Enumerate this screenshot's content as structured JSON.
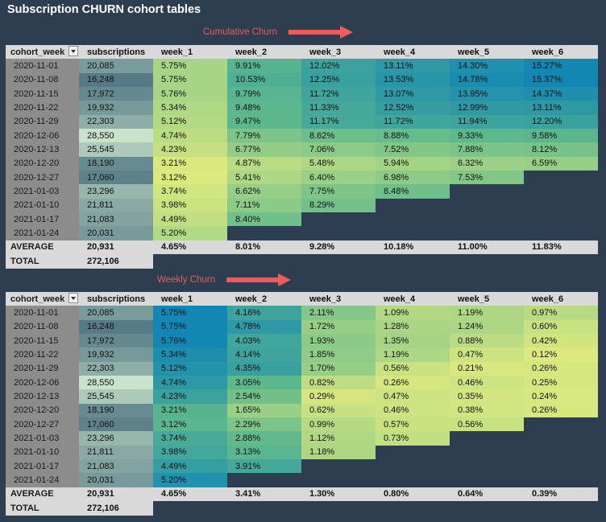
{
  "page": {
    "title": "Subscription CHURN cohort tables"
  },
  "colors": {
    "background": "#2d3e50",
    "header": "#d9d9d9",
    "cohort_column": "#8c8c8c",
    "annotation": "#f05a5a",
    "scale_low": "#dde97f",
    "scale_mid": "#5fb98c",
    "scale_high": "#1287b4",
    "subs_low": "#c8e3c9",
    "subs_high": "#567a86"
  },
  "header": {
    "cohort_week": "cohort_week",
    "subscriptions": "subscriptions",
    "weeks": [
      "week_1",
      "week_2",
      "week_3",
      "week_4",
      "week_5",
      "week_6"
    ]
  },
  "cohorts": [
    {
      "week": "2020-11-01",
      "subs": "20,085",
      "subs_n": 20085
    },
    {
      "week": "2020-11-08",
      "subs": "16,248",
      "subs_n": 16248
    },
    {
      "week": "2020-11-15",
      "subs": "17,972",
      "subs_n": 17972
    },
    {
      "week": "2020-11-22",
      "subs": "19,932",
      "subs_n": 19932
    },
    {
      "week": "2020-11-29",
      "subs": "22,303",
      "subs_n": 22303
    },
    {
      "week": "2020-12-06",
      "subs": "28,550",
      "subs_n": 28550
    },
    {
      "week": "2020-12-13",
      "subs": "25,545",
      "subs_n": 25545
    },
    {
      "week": "2020-12-20",
      "subs": "18,190",
      "subs_n": 18190
    },
    {
      "week": "2020-12-27",
      "subs": "17,060",
      "subs_n": 17060
    },
    {
      "week": "2021-01-03",
      "subs": "23,296",
      "subs_n": 23296
    },
    {
      "week": "2021-01-10",
      "subs": "21,811",
      "subs_n": 21811
    },
    {
      "week": "2021-01-17",
      "subs": "21,083",
      "subs_n": 21083
    },
    {
      "week": "2021-01-24",
      "subs": "20,031",
      "subs_n": 20031
    }
  ],
  "tables": [
    {
      "annotation": "Cumulative Churn",
      "rows": [
        [
          "5.75%",
          "9.91%",
          "12.02%",
          "13.11%",
          "14.30%",
          "15.27%"
        ],
        [
          "5.75%",
          "10.53%",
          "12.25%",
          "13.53%",
          "14.78%",
          "15.37%"
        ],
        [
          "5.76%",
          "9.79%",
          "11.72%",
          "13.07%",
          "13.95%",
          "14.37%"
        ],
        [
          "5.34%",
          "9.48%",
          "11.33%",
          "12.52%",
          "12.99%",
          "13.11%"
        ],
        [
          "5.12%",
          "9.47%",
          "11.17%",
          "11.72%",
          "11.94%",
          "12.20%"
        ],
        [
          "4.74%",
          "7.79%",
          "8.62%",
          "8.88%",
          "9.33%",
          "9.58%"
        ],
        [
          "4.23%",
          "6.77%",
          "7.06%",
          "7.52%",
          "7.88%",
          "8.12%"
        ],
        [
          "3.21%",
          "4.87%",
          "5.48%",
          "5.94%",
          "6.32%",
          "6.59%"
        ],
        [
          "3.12%",
          "5.41%",
          "6.40%",
          "6.98%",
          "7.53%"
        ],
        [
          "3.74%",
          "6.62%",
          "7.75%",
          "8.48%"
        ],
        [
          "3.98%",
          "7.11%",
          "8.29%"
        ],
        [
          "4.49%",
          "8.40%"
        ],
        [
          "5.20%"
        ]
      ],
      "average": {
        "label": "AVERAGE",
        "subs": "20,931",
        "values": [
          "4.65%",
          "8.01%",
          "9.28%",
          "10.18%",
          "11.00%",
          "11.83%"
        ]
      },
      "total": {
        "label": "TOTAL",
        "subs": "272,106"
      }
    },
    {
      "annotation": "Weekly Churn",
      "rows": [
        [
          "5.75%",
          "4.16%",
          "2.11%",
          "1.09%",
          "1.19%",
          "0.97%"
        ],
        [
          "5.75%",
          "4.78%",
          "1.72%",
          "1.28%",
          "1.24%",
          "0.60%"
        ],
        [
          "5.76%",
          "4.03%",
          "1.93%",
          "1.35%",
          "0.88%",
          "0.42%"
        ],
        [
          "5.34%",
          "4.14%",
          "1.85%",
          "1.19%",
          "0.47%",
          "0.12%"
        ],
        [
          "5.12%",
          "4.35%",
          "1.70%",
          "0.56%",
          "0.21%",
          "0.26%"
        ],
        [
          "4.74%",
          "3.05%",
          "0.82%",
          "0.26%",
          "0.46%",
          "0.25%"
        ],
        [
          "4.23%",
          "2.54%",
          "0.29%",
          "0.47%",
          "0.35%",
          "0.24%"
        ],
        [
          "3.21%",
          "1.65%",
          "0.62%",
          "0.46%",
          "0.38%",
          "0.26%"
        ],
        [
          "3.12%",
          "2.29%",
          "0.99%",
          "0.57%",
          "0.56%"
        ],
        [
          "3.74%",
          "2.88%",
          "1.12%",
          "0.73%"
        ],
        [
          "3.98%",
          "3.13%",
          "1.18%"
        ],
        [
          "4.49%",
          "3.91%"
        ],
        [
          "5.20%"
        ]
      ],
      "average": {
        "label": "AVERAGE",
        "subs": "20,931",
        "values": [
          "4.65%",
          "3.41%",
          "1.30%",
          "0.80%",
          "0.64%",
          "0.39%"
        ]
      },
      "total": {
        "label": "TOTAL",
        "subs": "272,106"
      }
    }
  ]
}
